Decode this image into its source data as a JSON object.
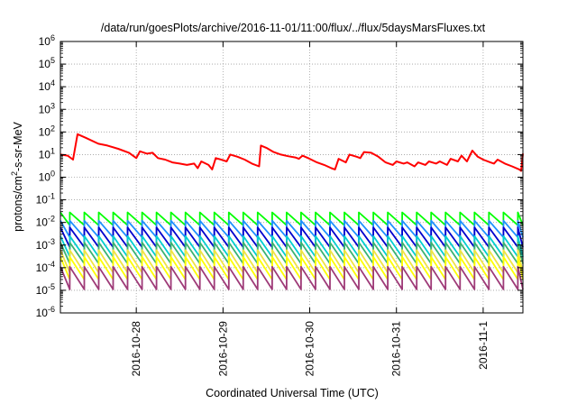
{
  "chart_data": {
    "type": "line",
    "title": "/data/run/goesPlots/archive/2016-11-01/11:00/flux/../flux/5daysMarsFluxes.txt",
    "xlabel": "Coordinated Universal Time (UTC)",
    "ylabel": {
      "pre": "protons/cm",
      "sup": "2",
      "post": "-s-sr-MeV"
    },
    "x_scale": "time",
    "x_range": [
      "2016-10-27 03:00",
      "2016-11-01 11:00"
    ],
    "x_ticks": [
      "2016-10-28",
      "2016-10-29",
      "2016-10-30",
      "2016-10-31",
      "2016-11-1"
    ],
    "y_scale": "log",
    "y_range": [
      1e-06,
      1000000.0
    ],
    "y_ticks": [
      {
        "base": "10",
        "exp": "-6"
      },
      {
        "base": "10",
        "exp": "-5"
      },
      {
        "base": "10",
        "exp": "-4"
      },
      {
        "base": "10",
        "exp": "-3"
      },
      {
        "base": "10",
        "exp": "-2"
      },
      {
        "base": "10",
        "exp": "-1"
      },
      {
        "base": "10",
        "exp": "0"
      },
      {
        "base": "10",
        "exp": "1"
      },
      {
        "base": "10",
        "exp": "2"
      },
      {
        "base": "10",
        "exp": "3"
      },
      {
        "base": "10",
        "exp": "4"
      },
      {
        "base": "10",
        "exp": "5"
      },
      {
        "base": "10",
        "exp": "6"
      }
    ],
    "grid": true,
    "legend": "none",
    "series": [
      {
        "color": "#ff0000",
        "points": [
          [
            "2016-10-27 03:00",
            10
          ],
          [
            "2016-10-27 05:00",
            9
          ],
          [
            "2016-10-27 06:30",
            6
          ],
          [
            "2016-10-27 07:45",
            80
          ],
          [
            "2016-10-27 10:00",
            55
          ],
          [
            "2016-10-27 13:30",
            30
          ],
          [
            "2016-10-27 16:00",
            25
          ],
          [
            "2016-10-27 19:00",
            18
          ],
          [
            "2016-10-27 22:00",
            12
          ],
          [
            "2016-10-28 00:00",
            7
          ],
          [
            "2016-10-28 01:00",
            14
          ],
          [
            "2016-10-28 03:00",
            11
          ],
          [
            "2016-10-28 04:30",
            12
          ],
          [
            "2016-10-28 06:00",
            7
          ],
          [
            "2016-10-28 08:00",
            6
          ],
          [
            "2016-10-28 10:00",
            4.5
          ],
          [
            "2016-10-28 12:00",
            4
          ],
          [
            "2016-10-28 14:00",
            3.5
          ],
          [
            "2016-10-28 16:00",
            4
          ],
          [
            "2016-10-28 17:00",
            2.5
          ],
          [
            "2016-10-28 18:00",
            5
          ],
          [
            "2016-10-28 20:00",
            3.5
          ],
          [
            "2016-10-28 21:00",
            2.2
          ],
          [
            "2016-10-28 22:00",
            7
          ],
          [
            "2016-10-28 23:30",
            6
          ],
          [
            "2016-10-29 01:00",
            5
          ],
          [
            "2016-10-29 02:00",
            10
          ],
          [
            "2016-10-29 04:00",
            8
          ],
          [
            "2016-10-29 06:00",
            6
          ],
          [
            "2016-10-29 08:00",
            4
          ],
          [
            "2016-10-29 10:00",
            3
          ],
          [
            "2016-10-29 10:30",
            25
          ],
          [
            "2016-10-29 12:00",
            20
          ],
          [
            "2016-10-29 14:00",
            13
          ],
          [
            "2016-10-29 16:00",
            10
          ],
          [
            "2016-10-29 18:00",
            8.5
          ],
          [
            "2016-10-29 20:00",
            7.5
          ],
          [
            "2016-10-29 21:00",
            6.5
          ],
          [
            "2016-10-29 22:00",
            9
          ],
          [
            "2016-10-30 00:00",
            6.5
          ],
          [
            "2016-10-30 02:00",
            4.5
          ],
          [
            "2016-10-30 04:00",
            3.5
          ],
          [
            "2016-10-30 06:00",
            2.5
          ],
          [
            "2016-10-30 07:00",
            2.2
          ],
          [
            "2016-10-30 08:00",
            6.5
          ],
          [
            "2016-10-30 10:00",
            4.5
          ],
          [
            "2016-10-30 11:00",
            10
          ],
          [
            "2016-10-30 13:00",
            8
          ],
          [
            "2016-10-30 14:00",
            7
          ],
          [
            "2016-10-30 15:00",
            13
          ],
          [
            "2016-10-30 17:00",
            12
          ],
          [
            "2016-10-30 19:00",
            8
          ],
          [
            "2016-10-30 21:00",
            4.5
          ],
          [
            "2016-10-30 23:00",
            3.5
          ],
          [
            "2016-10-31 00:00",
            5
          ],
          [
            "2016-10-31 02:00",
            4
          ],
          [
            "2016-10-31 03:00",
            4.5
          ],
          [
            "2016-10-31 05:00",
            3
          ],
          [
            "2016-10-31 06:00",
            4.5
          ],
          [
            "2016-10-31 08:00",
            3.5
          ],
          [
            "2016-10-31 09:00",
            5
          ],
          [
            "2016-10-31 11:00",
            4
          ],
          [
            "2016-10-31 12:00",
            5
          ],
          [
            "2016-10-31 14:00",
            3.5
          ],
          [
            "2016-10-31 15:00",
            6.5
          ],
          [
            "2016-10-31 17:00",
            5
          ],
          [
            "2016-10-31 18:00",
            9
          ],
          [
            "2016-10-31 19:30",
            5
          ],
          [
            "2016-10-31 21:00",
            15
          ],
          [
            "2016-10-31 22:30",
            8
          ],
          [
            "2016-11-01 00:00",
            6
          ],
          [
            "2016-11-01 02:00",
            4.5
          ],
          [
            "2016-11-01 03:00",
            4
          ],
          [
            "2016-11-01 04:00",
            6
          ],
          [
            "2016-11-01 06:00",
            4
          ],
          [
            "2016-11-01 08:00",
            3
          ],
          [
            "2016-11-01 10:00",
            2.2
          ],
          [
            "2016-11-01 10:30",
            1.9
          ],
          [
            "2016-11-01 11:00",
            11
          ]
        ]
      },
      {
        "color": "#00ff00",
        "sawtooth": {
          "high": 0.028,
          "low": 0.0075
        }
      },
      {
        "color": "#1e90ff",
        "sawtooth": {
          "high": 0.012,
          "low": 0.0022
        }
      },
      {
        "color": "#0000cd",
        "sawtooth": {
          "high": 0.006,
          "low": 0.0008
        }
      },
      {
        "color": "#00ced1",
        "sawtooth": {
          "high": 0.0025,
          "low": 0.0003
        }
      },
      {
        "color": "#3cb371",
        "sawtooth": {
          "high": 0.0013,
          "low": 0.00015
        }
      },
      {
        "color": "#f0e442",
        "sawtooth": {
          "high": 0.0006,
          "low": 6e-05
        }
      },
      {
        "color": "#ffff00",
        "sawtooth": {
          "high": 0.0003,
          "low": 3e-05
        }
      },
      {
        "color": "#9e3a78",
        "sawtooth": {
          "high": 0.00011,
          "low": 1.1e-05
        }
      }
    ]
  }
}
